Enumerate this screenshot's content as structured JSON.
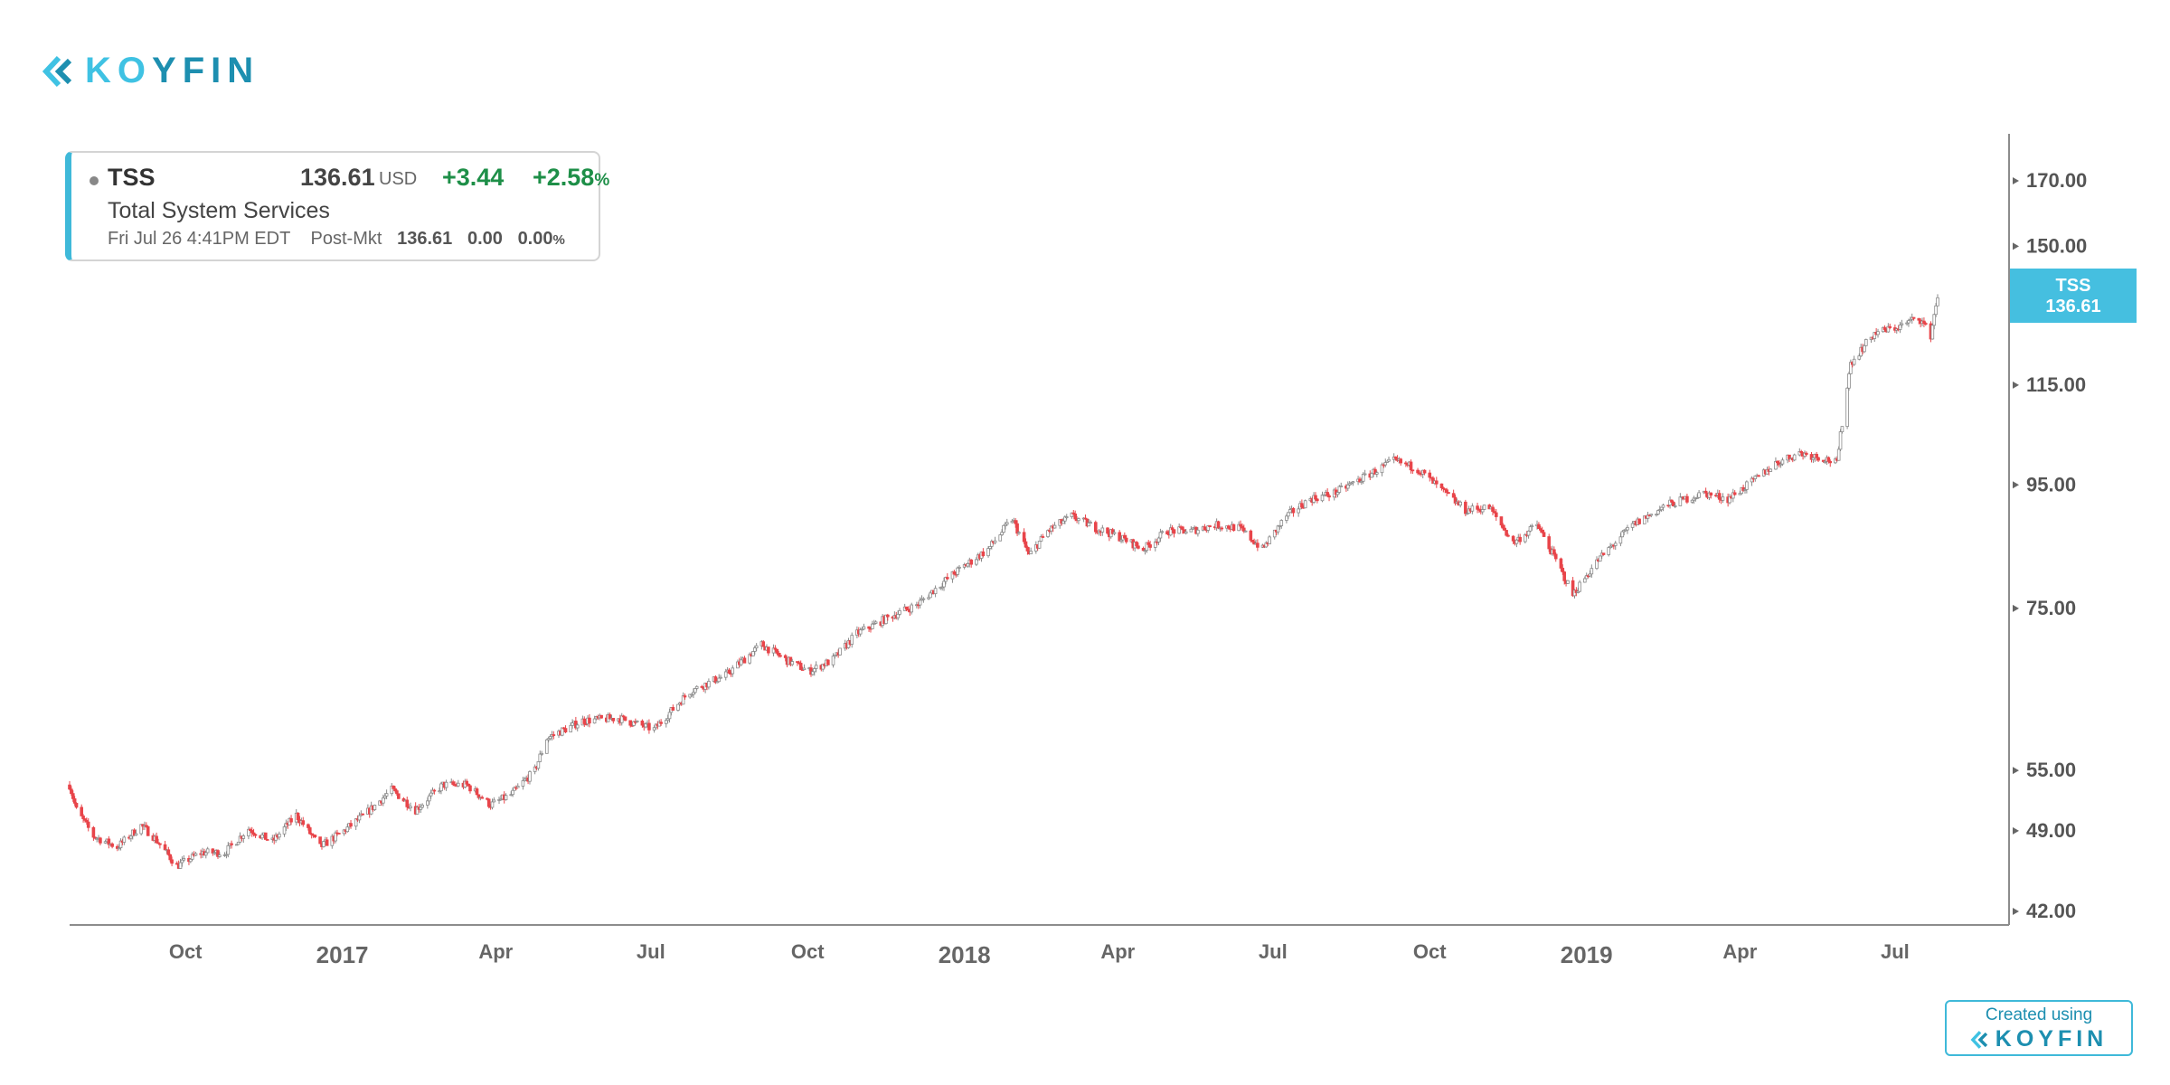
{
  "brand": {
    "logo_text_a": "K",
    "logo_text_b": "O",
    "logo_text_c": "YFIN",
    "logo_icon": "koyfin-chevron-icon"
  },
  "quote": {
    "ticker": "TSS",
    "price": "136.61",
    "currency": "USD",
    "change": "+3.44",
    "change_pct": "+2.58",
    "pct_sign": "%",
    "name": "Total System Services",
    "timestamp": "Fri Jul 26 4:41PM EDT",
    "session": "Post-Mkt",
    "post_price": "136.61",
    "post_change": "0.00",
    "post_change_pct": "0.00",
    "up_color": "#1e8f48"
  },
  "price_tag": {
    "ticker": "TSS",
    "price": "136.61",
    "color": "#45bfe0"
  },
  "credit": {
    "line1": "Created using",
    "brand": "KOYFIN"
  },
  "chart_data": {
    "type": "candlestick",
    "y_scale": "log",
    "ylim": [
      40,
      180
    ],
    "y_ticks": [
      "170.00",
      "150.00",
      "115.00",
      "95.00",
      "75.00",
      "55.00",
      "49.00",
      "42.00"
    ],
    "x_range": [
      "2016-07-25",
      "2019-07-26"
    ],
    "x_ticks": [
      {
        "label": "Oct",
        "date": "2016-10-01",
        "major": false
      },
      {
        "label": "2017",
        "date": "2017-01-01",
        "major": true
      },
      {
        "label": "Apr",
        "date": "2017-04-01",
        "major": false
      },
      {
        "label": "Jul",
        "date": "2017-07-01",
        "major": false
      },
      {
        "label": "Oct",
        "date": "2017-10-01",
        "major": false
      },
      {
        "label": "2018",
        "date": "2018-01-01",
        "major": true
      },
      {
        "label": "Apr",
        "date": "2018-04-01",
        "major": false
      },
      {
        "label": "Jul",
        "date": "2018-07-01",
        "major": false
      },
      {
        "label": "Oct",
        "date": "2018-10-01",
        "major": false
      },
      {
        "label": "2019",
        "date": "2019-01-01",
        "major": true
      },
      {
        "label": "Apr",
        "date": "2019-04-01",
        "major": false
      },
      {
        "label": "Jul",
        "date": "2019-07-01",
        "major": false
      }
    ],
    "up_color": "#8a8a8a",
    "down_color": "#e8454a",
    "series": [
      {
        "name": "TSS",
        "price_path": [
          [
            "2016-07-25",
            53.5
          ],
          [
            "2016-07-29",
            51.0
          ],
          [
            "2016-08-08",
            48.5
          ],
          [
            "2016-08-22",
            47.5
          ],
          [
            "2016-09-05",
            49.5
          ],
          [
            "2016-09-12",
            48.5
          ],
          [
            "2016-09-26",
            45.8
          ],
          [
            "2016-10-10",
            47.0
          ],
          [
            "2016-10-24",
            47.0
          ],
          [
            "2016-11-07",
            49.2
          ],
          [
            "2016-11-21",
            48.0
          ],
          [
            "2016-12-05",
            50.5
          ],
          [
            "2016-12-19",
            47.5
          ],
          [
            "2017-01-02",
            49.0
          ],
          [
            "2017-01-16",
            50.8
          ],
          [
            "2017-01-30",
            53.0
          ],
          [
            "2017-02-13",
            51.0
          ],
          [
            "2017-03-01",
            53.5
          ],
          [
            "2017-03-15",
            53.5
          ],
          [
            "2017-03-29",
            51.5
          ],
          [
            "2017-04-10",
            52.5
          ],
          [
            "2017-04-24",
            55.0
          ],
          [
            "2017-05-01",
            58.5
          ],
          [
            "2017-05-22",
            60.5
          ],
          [
            "2017-06-12",
            60.8
          ],
          [
            "2017-07-03",
            59.5
          ],
          [
            "2017-07-24",
            64.0
          ],
          [
            "2017-08-14",
            66.0
          ],
          [
            "2017-09-04",
            70.0
          ],
          [
            "2017-09-18",
            68.0
          ],
          [
            "2017-10-02",
            66.5
          ],
          [
            "2017-10-16",
            68.0
          ],
          [
            "2017-10-30",
            71.5
          ],
          [
            "2017-11-20",
            74.0
          ],
          [
            "2017-12-04",
            75.5
          ],
          [
            "2017-12-25",
            80.0
          ],
          [
            "2018-01-15",
            84.0
          ],
          [
            "2018-01-29",
            89.0
          ],
          [
            "2018-02-08",
            83.0
          ],
          [
            "2018-02-19",
            87.0
          ],
          [
            "2018-03-05",
            89.5
          ],
          [
            "2018-03-19",
            87.5
          ],
          [
            "2018-04-02",
            86.0
          ],
          [
            "2018-04-16",
            84.0
          ],
          [
            "2018-04-30",
            87.0
          ],
          [
            "2018-05-14",
            87.0
          ],
          [
            "2018-05-28",
            88.0
          ],
          [
            "2018-06-11",
            87.5
          ],
          [
            "2018-06-25",
            84.0
          ],
          [
            "2018-07-09",
            89.5
          ],
          [
            "2018-07-23",
            92.5
          ],
          [
            "2018-08-06",
            93.5
          ],
          [
            "2018-08-27",
            97.0
          ],
          [
            "2018-09-10",
            99.5
          ],
          [
            "2018-09-24",
            98.0
          ],
          [
            "2018-10-08",
            94.0
          ],
          [
            "2018-10-22",
            90.5
          ],
          [
            "2018-11-05",
            91.0
          ],
          [
            "2018-11-19",
            85.0
          ],
          [
            "2018-12-03",
            88.0
          ],
          [
            "2018-12-24",
            77.0
          ],
          [
            "2019-01-07",
            82.0
          ],
          [
            "2019-01-28",
            88.0
          ],
          [
            "2019-02-18",
            91.5
          ],
          [
            "2019-03-11",
            93.5
          ],
          [
            "2019-03-25",
            92.5
          ],
          [
            "2019-04-08",
            95.5
          ],
          [
            "2019-04-22",
            99.0
          ],
          [
            "2019-05-06",
            101.0
          ],
          [
            "2019-05-20",
            100.0
          ],
          [
            "2019-05-28",
            99.0
          ],
          [
            "2019-05-31",
            107.0
          ],
          [
            "2019-06-05",
            120.0
          ],
          [
            "2019-06-19",
            127.0
          ],
          [
            "2019-07-03",
            128.5
          ],
          [
            "2019-07-15",
            131.0
          ],
          [
            "2019-07-22",
            126.5
          ],
          [
            "2019-07-26",
            136.6
          ]
        ]
      }
    ]
  }
}
